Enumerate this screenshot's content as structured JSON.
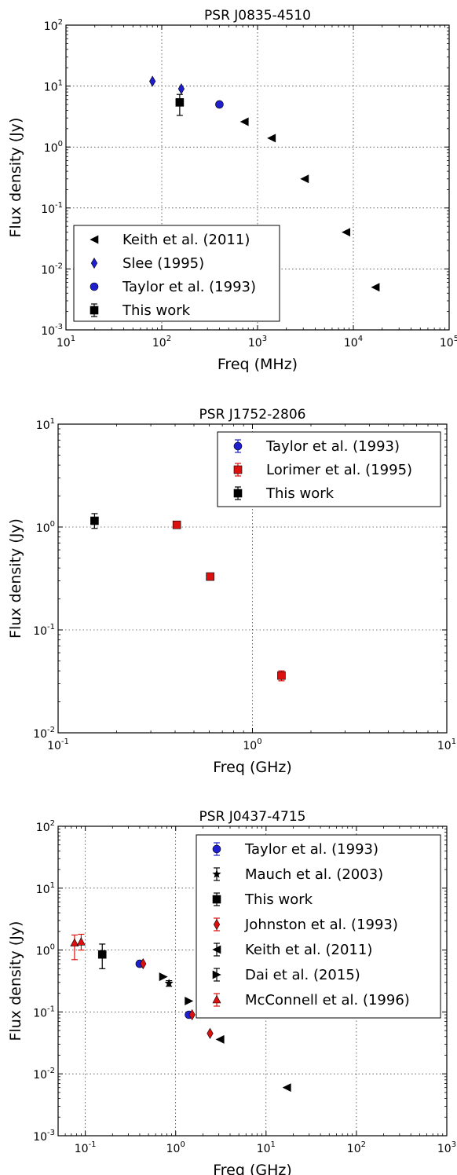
{
  "chart_data": [
    {
      "type": "scatter",
      "title": "PSR J0835-4510",
      "xlabel": "Freq (MHz)",
      "ylabel": "Flux density (Jy)",
      "xscale": "log",
      "yscale": "log",
      "xlim": [
        10,
        100000
      ],
      "ylim": [
        0.001,
        100
      ],
      "grid": true,
      "legend_position": "bottom-left",
      "series": [
        {
          "name": "Keith et al. (2011)",
          "marker": "triangle-left",
          "color": "#000000",
          "points": [
            {
              "x": 730,
              "y": 2.6
            },
            {
              "x": 1400,
              "y": 1.4
            },
            {
              "x": 3100,
              "y": 0.3
            },
            {
              "x": 8400,
              "y": 0.04
            },
            {
              "x": 17000,
              "y": 0.005
            }
          ]
        },
        {
          "name": "Slee (1995)",
          "marker": "diamond",
          "color": "#1f1fd0",
          "points": [
            {
              "x": 80,
              "y": 12
            },
            {
              "x": 160,
              "y": 9
            }
          ]
        },
        {
          "name": "Taylor et al. (1993)",
          "marker": "circle",
          "color": "#1f1fd0",
          "points": [
            {
              "x": 400,
              "y": 5
            }
          ]
        },
        {
          "name": "This work",
          "marker": "square",
          "color": "#000000",
          "errorbar": true,
          "points": [
            {
              "x": 154,
              "y": 5.4,
              "ylo": 3.3,
              "yhi": 7.3
            }
          ]
        }
      ],
      "x_tick_values": [
        10,
        100,
        1000,
        10000,
        100000
      ],
      "y_tick_values": [
        0.001,
        0.01,
        0.1,
        1,
        10,
        100
      ]
    },
    {
      "type": "scatter",
      "title": "PSR J1752-2806",
      "xlabel": "Freq (GHz)",
      "ylabel": "Flux density (Jy)",
      "xscale": "log",
      "yscale": "log",
      "xlim": [
        0.1,
        10
      ],
      "ylim": [
        0.01,
        10
      ],
      "grid": true,
      "legend_position": "top-right",
      "series": [
        {
          "name": "Taylor et al. (1993)",
          "marker": "circle",
          "color": "#1f1fd0",
          "errorbar": true,
          "points": []
        },
        {
          "name": "Lorimer et al. (1995)",
          "marker": "square",
          "color": "#dd1010",
          "errorbar": true,
          "points": [
            {
              "x": 0.408,
              "y": 1.05,
              "ylo": 0.98,
              "yhi": 1.12
            },
            {
              "x": 0.606,
              "y": 0.33,
              "ylo": 0.315,
              "yhi": 0.345
            },
            {
              "x": 1.41,
              "y": 0.036,
              "ylo": 0.032,
              "yhi": 0.04
            }
          ]
        },
        {
          "name": "This work",
          "marker": "square",
          "color": "#000000",
          "errorbar": true,
          "points": [
            {
              "x": 0.154,
              "y": 1.15,
              "ylo": 0.97,
              "yhi": 1.35
            }
          ]
        }
      ],
      "x_tick_values": [
        0.1,
        1,
        10
      ],
      "y_tick_values": [
        0.01,
        0.1,
        1,
        10
      ]
    },
    {
      "type": "scatter",
      "title": "PSR J0437-4715",
      "xlabel": "Freq (GHz)",
      "ylabel": "Flux density (Jy)",
      "xscale": "log",
      "yscale": "log",
      "xlim": [
        0.05,
        1000
      ],
      "ylim": [
        0.001,
        100
      ],
      "grid": true,
      "legend_position": "top-right",
      "series": [
        {
          "name": "Taylor et al. (1993)",
          "marker": "circle",
          "color": "#1f1fd0",
          "errorbar": true,
          "points": [
            {
              "x": 0.4,
              "y": 0.6
            },
            {
              "x": 1.4,
              "y": 0.09
            }
          ]
        },
        {
          "name": "Mauch et al. (2003)",
          "marker": "star",
          "color": "#000000",
          "errorbar": true,
          "points": [
            {
              "x": 0.843,
              "y": 0.29,
              "ylo": 0.26,
              "yhi": 0.32
            }
          ]
        },
        {
          "name": "This work",
          "marker": "square",
          "color": "#000000",
          "errorbar": true,
          "points": [
            {
              "x": 0.154,
              "y": 0.85,
              "ylo": 0.5,
              "yhi": 1.25
            }
          ]
        },
        {
          "name": "Johnston et al. (1993)",
          "marker": "diamond",
          "color": "#dd1010",
          "errorbar": true,
          "points": [
            {
              "x": 0.436,
              "y": 0.6
            },
            {
              "x": 1.52,
              "y": 0.09
            },
            {
              "x": 2.4,
              "y": 0.045
            }
          ]
        },
        {
          "name": "Keith et al. (2011)",
          "marker": "triangle-left",
          "color": "#000000",
          "errorbar": true,
          "points": [
            {
              "x": 3.1,
              "y": 0.036
            },
            {
              "x": 17,
              "y": 0.006
            }
          ]
        },
        {
          "name": "Dai et al. (2015)",
          "marker": "triangle-right",
          "color": "#000000",
          "errorbar": true,
          "points": [
            {
              "x": 0.73,
              "y": 0.37
            },
            {
              "x": 1.4,
              "y": 0.15
            }
          ]
        },
        {
          "name": "McConnell et al. (1996)",
          "marker": "triangle-up",
          "color": "#dd1010",
          "errorbar": true,
          "points": [
            {
              "x": 0.076,
              "y": 1.3,
              "ylo": 0.7,
              "yhi": 1.75
            },
            {
              "x": 0.09,
              "y": 1.35,
              "ylo": 1.0,
              "yhi": 1.8
            }
          ]
        }
      ],
      "x_tick_values": [
        0.1,
        1,
        10,
        100,
        1000
      ],
      "y_tick_values": [
        0.001,
        0.01,
        0.1,
        1,
        10,
        100
      ]
    }
  ]
}
